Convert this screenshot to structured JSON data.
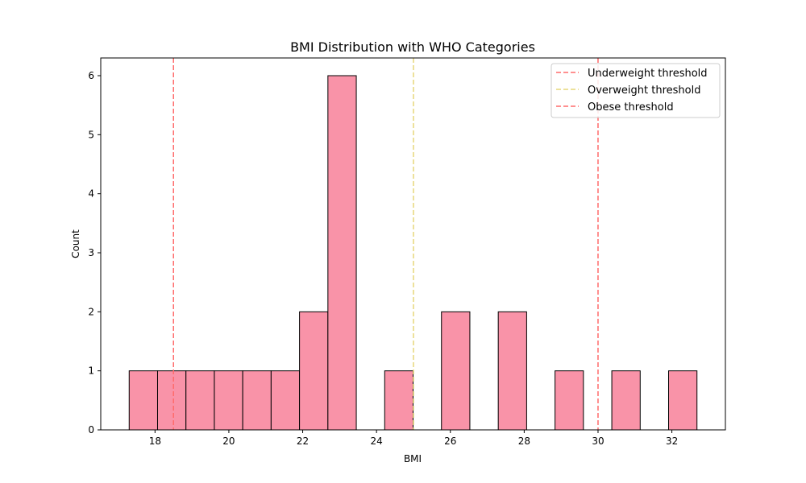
{
  "chart_data": {
    "type": "bar",
    "title": "BMI Distribution with WHO Categories",
    "xlabel": "BMI",
    "ylabel": "Count",
    "xlim": [
      16.53,
      33.45
    ],
    "ylim": [
      0,
      6.3
    ],
    "bin_start": 17.3,
    "bin_width": 0.769,
    "bin_counts": [
      1,
      1,
      1,
      1,
      1,
      1,
      2,
      6,
      0,
      1,
      0,
      2,
      0,
      2,
      0,
      1,
      0,
      1,
      0,
      1
    ],
    "x_ticks": [
      18,
      20,
      22,
      24,
      26,
      28,
      30,
      32
    ],
    "y_ticks": [
      0,
      1,
      2,
      3,
      4,
      5,
      6
    ],
    "bar_color": "#f993a8",
    "bar_edge_color": "#000000",
    "thresholds": [
      {
        "name": "Underweight threshold",
        "x": 18.5,
        "color": "#ff6b6b"
      },
      {
        "name": "Overweight threshold",
        "x": 25,
        "color": "#e6d77a"
      },
      {
        "name": "Obese threshold",
        "x": 30,
        "color": "#ff6b6b"
      }
    ],
    "legend_position": "top-right",
    "grid": false
  }
}
